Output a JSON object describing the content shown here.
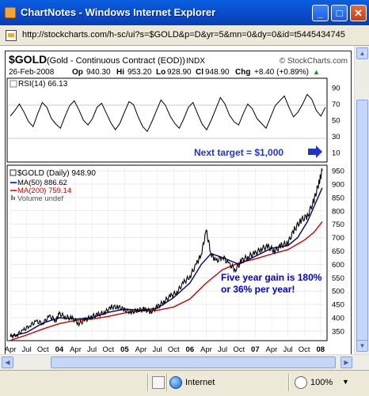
{
  "window": {
    "title": "ChartNotes - Windows Internet Explorer",
    "minimize_glyph": "_",
    "maximize_glyph": "□",
    "close_glyph": "✕"
  },
  "address": {
    "url": "http://stockcharts.com/h-sc/ui?s=$GOLD&p=D&yr=5&mn=0&dy=0&id=t5445434745"
  },
  "chart": {
    "symbol": "$GOLD",
    "name": "(Gold - Continuous Contract (EOD))",
    "exchange": "INDX",
    "brand": "© StockCharts.com",
    "date": "26-Feb-2008",
    "quote": {
      "op_label": "Op",
      "op": "940.30",
      "hi_label": "Hi",
      "hi": "953.20",
      "lo_label": "Lo",
      "lo": "928.90",
      "cl_label": "Cl",
      "cl": "948.90",
      "chg_label": "Chg",
      "chg": "+8.40 (+0.89%)",
      "chg_arrow": "▲"
    },
    "rsi_label": "RSI(14) 66.13",
    "rsi_ticks": [
      "90",
      "70",
      "50",
      "30",
      "10"
    ],
    "next_target": "Next target = $1,000",
    "price_legend": {
      "main": "$GOLD (Daily) 948.90",
      "ma50": "MA(50) 886.62",
      "ma200": "MA(200) 759.14",
      "volume": "Volume undef"
    },
    "annotation_line1": "Five year gain is 180%",
    "annotation_line2": "or 36% per year!",
    "colors": {
      "price": "#000000",
      "ma50": "#000080",
      "ma200": "#cc0000",
      "annotation": "#0000cc",
      "arrow": "#2233cc"
    }
  },
  "chart_data": {
    "type": "line",
    "title": "$GOLD (Gold - Continuous Contract (EOD)) INDX",
    "x_ticks": [
      "Apr",
      "Jul",
      "Oct",
      "04",
      "Apr",
      "Jul",
      "Oct",
      "05",
      "Apr",
      "Jul",
      "Oct",
      "06",
      "Apr",
      "Jul",
      "Oct",
      "07",
      "Apr",
      "Jul",
      "Oct",
      "08"
    ],
    "y_ticks": [
      350,
      400,
      450,
      500,
      550,
      600,
      650,
      700,
      750,
      800,
      850,
      900,
      950
    ],
    "ylim": [
      320,
      965
    ],
    "xlim": [
      0,
      19.3
    ],
    "series": [
      {
        "name": "$GOLD (Daily)",
        "color": "#000000",
        "points": [
          [
            0,
            330
          ],
          [
            0.4,
            336
          ],
          [
            0.8,
            352
          ],
          [
            1.2,
            372
          ],
          [
            1.6,
            385
          ],
          [
            2,
            380
          ],
          [
            2.4,
            405
          ],
          [
            2.8,
            390
          ],
          [
            3,
            415
          ],
          [
            3.4,
            402
          ],
          [
            3.8,
            398
          ],
          [
            4.2,
            378
          ],
          [
            4.6,
            392
          ],
          [
            5,
            405
          ],
          [
            5.4,
            412
          ],
          [
            5.8,
            420
          ],
          [
            6.2,
            440
          ],
          [
            6.6,
            440
          ],
          [
            7,
            430
          ],
          [
            7.4,
            420
          ],
          [
            7.8,
            428
          ],
          [
            8.2,
            432
          ],
          [
            8.6,
            422
          ],
          [
            9,
            440
          ],
          [
            9.4,
            460
          ],
          [
            9.8,
            480
          ],
          [
            10.2,
            495
          ],
          [
            10.6,
            530
          ],
          [
            11,
            555
          ],
          [
            11.4,
            600
          ],
          [
            11.7,
            640
          ],
          [
            12.0,
            725
          ],
          [
            12.3,
            640
          ],
          [
            12.6,
            610
          ],
          [
            13,
            630
          ],
          [
            13.4,
            600
          ],
          [
            13.8,
            580
          ],
          [
            14.2,
            615
          ],
          [
            14.6,
            630
          ],
          [
            15,
            640
          ],
          [
            15.4,
            660
          ],
          [
            15.8,
            665
          ],
          [
            16.2,
            650
          ],
          [
            16.6,
            670
          ],
          [
            17,
            680
          ],
          [
            17.4,
            730
          ],
          [
            17.8,
            765
          ],
          [
            18.2,
            780
          ],
          [
            18.6,
            840
          ],
          [
            18.9,
            905
          ],
          [
            19.1,
            950
          ]
        ]
      },
      {
        "name": "MA(50)",
        "color": "#000080",
        "points": [
          [
            0,
            330
          ],
          [
            1,
            345
          ],
          [
            2,
            380
          ],
          [
            3,
            400
          ],
          [
            4,
            395
          ],
          [
            5,
            400
          ],
          [
            6,
            420
          ],
          [
            7,
            432
          ],
          [
            8,
            428
          ],
          [
            9,
            435
          ],
          [
            10,
            475
          ],
          [
            11,
            530
          ],
          [
            11.7,
            600
          ],
          [
            12.3,
            640
          ],
          [
            13,
            625
          ],
          [
            14,
            600
          ],
          [
            15,
            630
          ],
          [
            16,
            660
          ],
          [
            17,
            670
          ],
          [
            17.6,
            700
          ],
          [
            18.2,
            760
          ],
          [
            18.7,
            830
          ],
          [
            19.1,
            886
          ]
        ]
      },
      {
        "name": "MA(200)",
        "color": "#cc0000",
        "points": [
          [
            0,
            315
          ],
          [
            1,
            335
          ],
          [
            2,
            358
          ],
          [
            3,
            378
          ],
          [
            4,
            390
          ],
          [
            5,
            395
          ],
          [
            6,
            405
          ],
          [
            7,
            418
          ],
          [
            8,
            425
          ],
          [
            9,
            428
          ],
          [
            10,
            440
          ],
          [
            11,
            470
          ],
          [
            12,
            530
          ],
          [
            13,
            580
          ],
          [
            14,
            605
          ],
          [
            15,
            620
          ],
          [
            16,
            638
          ],
          [
            17,
            655
          ],
          [
            18,
            690
          ],
          [
            18.6,
            720
          ],
          [
            19.1,
            759
          ]
        ]
      }
    ],
    "rsi": {
      "ylim": [
        0,
        100
      ],
      "ticks": [
        90,
        70,
        50,
        30,
        10
      ],
      "values": [
        55,
        62,
        70,
        60,
        48,
        42,
        58,
        72,
        66,
        52,
        45,
        40,
        55,
        68,
        74,
        63,
        50,
        44,
        52,
        66,
        71,
        59,
        47,
        38,
        46,
        60,
        73,
        69,
        54,
        42,
        36,
        48,
        62,
        75,
        68,
        55,
        46,
        40,
        52,
        66,
        72,
        58,
        45,
        38,
        50,
        64,
        78,
        70,
        56,
        48,
        44,
        58,
        70,
        64,
        52,
        46,
        40,
        54,
        68,
        74,
        80,
        66,
        54,
        60,
        70,
        82,
        76,
        62,
        55,
        66
      ]
    }
  },
  "status": {
    "zone": "Internet",
    "zoom": "100%"
  }
}
